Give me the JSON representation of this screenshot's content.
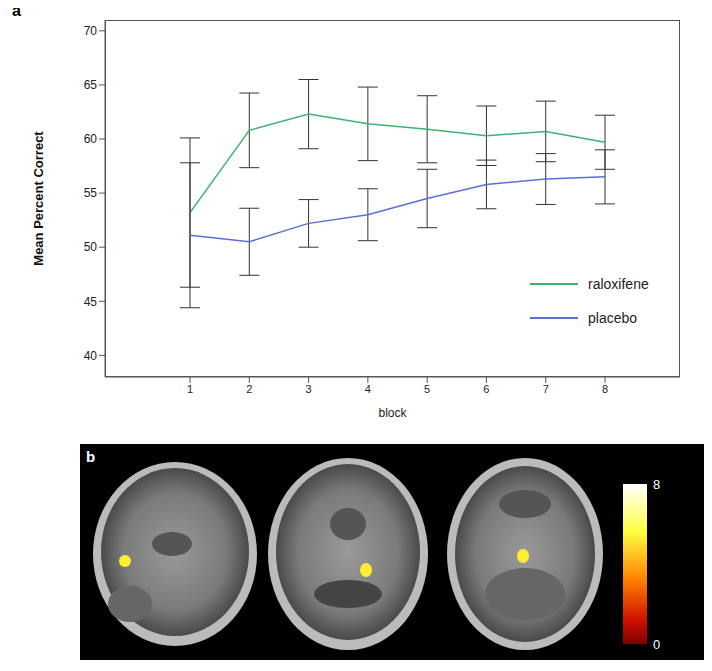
{
  "chart_data": [
    {
      "type": "line",
      "panel": "a",
      "x_label": "block",
      "y_label": "Mean Percent Correct",
      "categories": [
        "1",
        "2",
        "3",
        "4",
        "5",
        "6",
        "7",
        "8"
      ],
      "ylim": [
        38,
        71
      ],
      "yticks": [
        40,
        45,
        50,
        55,
        60,
        65,
        70
      ],
      "legend": "lower right",
      "series": [
        {
          "name": "raloxifene",
          "color": "#3cb371",
          "values": [
            53.2,
            60.8,
            62.3,
            61.4,
            60.9,
            60.3,
            60.7,
            59.7
          ],
          "errors": [
            6.9,
            3.45,
            3.2,
            3.4,
            3.1,
            2.75,
            2.8,
            2.5
          ]
        },
        {
          "name": "placebo",
          "color": "#5a6fd8",
          "values": [
            51.1,
            50.5,
            52.2,
            53.0,
            54.5,
            55.8,
            56.3,
            56.5
          ],
          "errors": [
            6.7,
            3.1,
            2.2,
            2.4,
            2.7,
            2.25,
            2.35,
            2.5
          ]
        }
      ]
    },
    {
      "type": "image",
      "panel": "b",
      "colorbar": {
        "range": [
          0,
          8
        ],
        "ticks": [
          0,
          8
        ]
      }
    }
  ]
}
